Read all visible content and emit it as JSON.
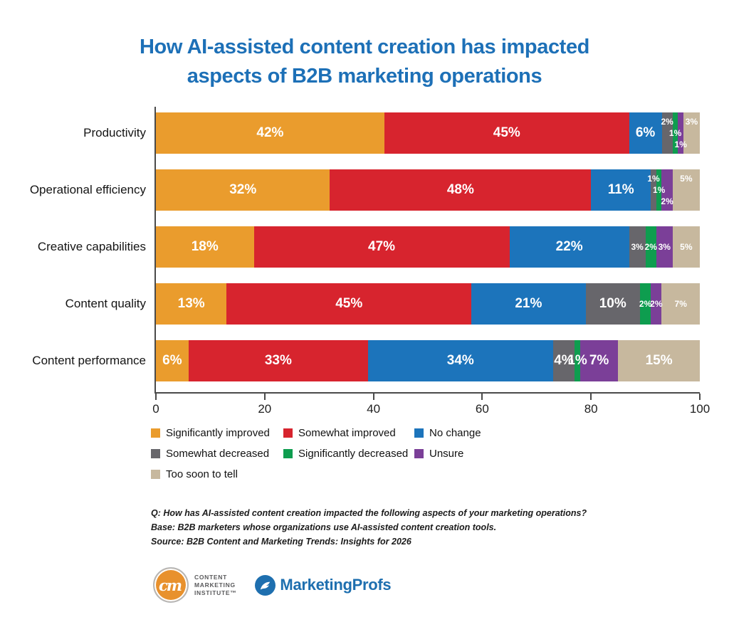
{
  "title": {
    "line1": "How AI-assisted content creation has impacted",
    "line2": "aspects of B2B marketing operations",
    "color": "#1D70B7"
  },
  "chart_data": {
    "type": "bar",
    "subtype": "horizontal-stacked",
    "categories": [
      "Productivity",
      "Operational efficiency",
      "Creative capabilities",
      "Content quality",
      "Content performance"
    ],
    "series": [
      {
        "name": "Significantly improved",
        "color": "#EA9C2D",
        "values": [
          42,
          32,
          18,
          13,
          6
        ]
      },
      {
        "name": "Somewhat improved",
        "color": "#D7242E",
        "values": [
          45,
          48,
          47,
          45,
          33
        ]
      },
      {
        "name": "No change",
        "color": "#1C74BB",
        "values": [
          6,
          11,
          22,
          21,
          34
        ]
      },
      {
        "name": "Somewhat decreased",
        "color": "#67666B",
        "values": [
          2,
          1,
          3,
          10,
          4
        ]
      },
      {
        "name": "Significantly decreased",
        "color": "#0E9D4F",
        "values": [
          1,
          1,
          2,
          2,
          1
        ]
      },
      {
        "name": "Unsure",
        "color": "#7B3F98",
        "values": [
          1,
          2,
          3,
          2,
          7
        ]
      },
      {
        "name": "Too soon to tell",
        "color": "#C7B89E",
        "values": [
          3,
          5,
          5,
          7,
          15
        ]
      }
    ],
    "value_suffix": "%",
    "xlim": [
      0,
      100
    ],
    "xticks": [
      0,
      20,
      40,
      60,
      80,
      100
    ],
    "grid": false,
    "legend_position": "bottom",
    "label_layout": [
      [
        "center",
        "center",
        "center",
        "top",
        "mid",
        "bottom",
        "top"
      ],
      [
        "center",
        "center",
        "center",
        "top",
        "mid",
        "bottom",
        "top"
      ],
      [
        "center",
        "center",
        "center",
        "center",
        "center",
        "center",
        "center"
      ],
      [
        "center",
        "center",
        "center",
        "center",
        "center",
        "center",
        "center"
      ],
      [
        "center",
        "center",
        "center",
        "center",
        "center",
        "center",
        "center"
      ]
    ],
    "label_size": [
      [
        "lg",
        "lg",
        "lg",
        "sm",
        "sm",
        "sm",
        "sm"
      ],
      [
        "lg",
        "lg",
        "lg",
        "sm",
        "sm",
        "sm",
        "sm"
      ],
      [
        "lg",
        "lg",
        "lg",
        "sm",
        "sm",
        "sm",
        "sm"
      ],
      [
        "lg",
        "lg",
        "lg",
        "lg",
        "sm",
        "sm",
        "sm"
      ],
      [
        "lg",
        "lg",
        "lg",
        "lg",
        "lg",
        "lg",
        "lg"
      ]
    ]
  },
  "footnotes": [
    "Q: How has AI-assisted content creation impacted the following aspects of your marketing operations?",
    "Base: B2B marketers whose organizations use AI-assisted content creation tools.",
    "Source: B2B Content and Marketing Trends: Insights for 2026"
  ],
  "logos": {
    "cmi": {
      "monogram": "cm",
      "line1": "CONTENT",
      "line2": "MARKETING",
      "line3": "INSTITUTE™",
      "circle_color": "#E8912D"
    },
    "marketingprofs": {
      "text": "MarketingProfs",
      "color": "#1E6FAF"
    }
  }
}
